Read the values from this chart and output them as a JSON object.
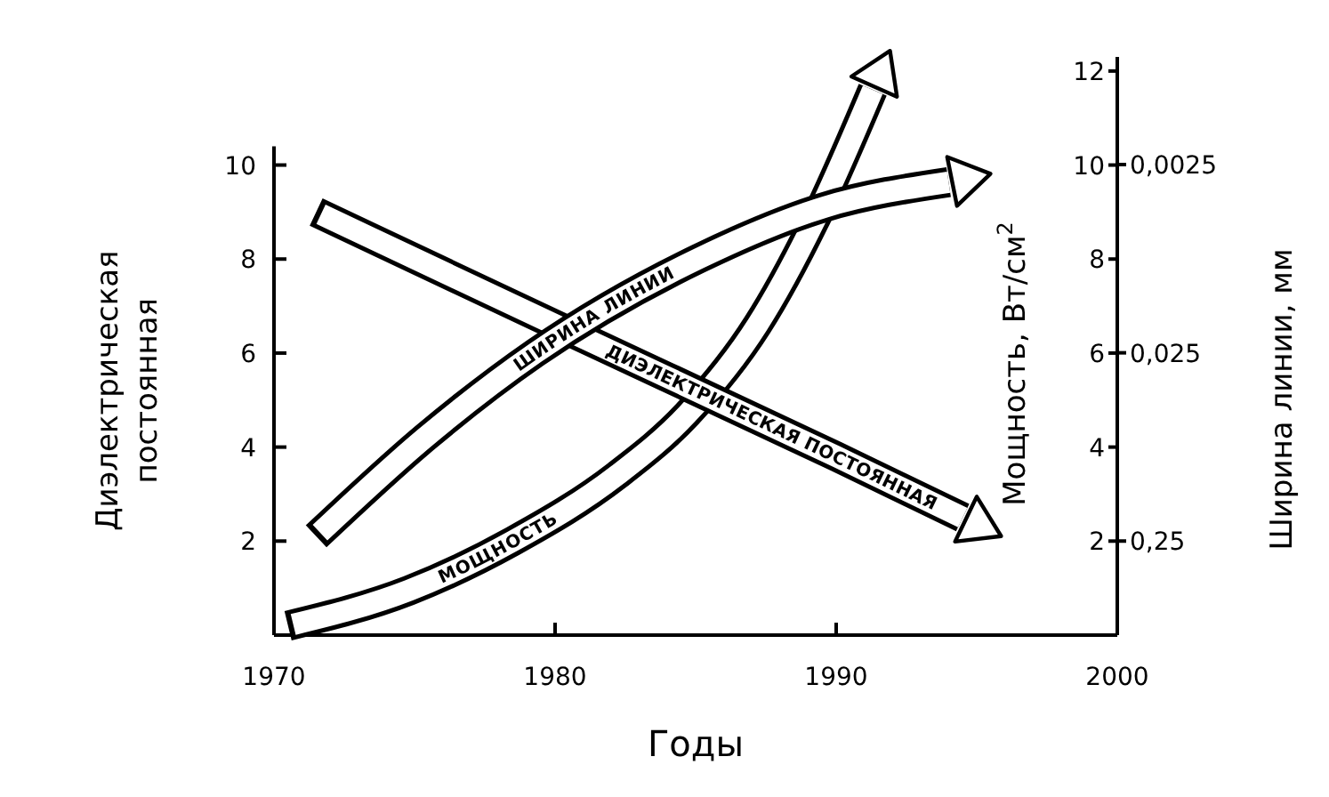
{
  "chart_data": {
    "type": "line",
    "xlabel": "Годы",
    "ylabel": "Диэлектрическая постоянная",
    "y2label": "Мощность, Вт/см$^{2}$",
    "y3label": "Ширина линии, мм",
    "xlim": [
      1970,
      2000
    ],
    "xticks": [
      1970,
      1980,
      1990,
      2000
    ],
    "ylim": [
      0,
      10.4
    ],
    "yticks": [
      2,
      4,
      6,
      8,
      10
    ],
    "y2lim": [
      0,
      12.3
    ],
    "y2ticks": [
      2,
      4,
      6,
      8,
      10,
      12
    ],
    "y3lim": [
      0.79,
      0.00067
    ],
    "y3ticks": [
      {
        "value": 0.25,
        "label": "0,25"
      },
      {
        "value": 0.025,
        "label": "0,025"
      },
      {
        "value": 0.0025,
        "label": "0,0025"
      }
    ],
    "log": "y3",
    "series": [
      {
        "name": "МОЩНОСТЬ",
        "color": "#000000",
        "axis": "y2",
        "x": [
          1970.5,
          1974.8,
          1978.5,
          1982.2,
          1984.7,
          1987.2,
          1989.3,
          1991.3
        ],
        "values": [
          0.2,
          0.95,
          2.0,
          3.4,
          4.7,
          6.6,
          8.9,
          11.6
        ]
      },
      {
        "name": "ДИЭЛЕКТРИЧЕСКАЯ ПОСТОЯННАЯ",
        "color": "#000000",
        "axis": "y",
        "x": [
          1971.5,
          1980,
          1990,
          1994.5
        ],
        "values": [
          9.0,
          6.6,
          3.8,
          2.5
        ]
      },
      {
        "name": "ШИРИНА ЛИНИИ",
        "color": "#000000",
        "axis": "y3",
        "x": [
          1971.5,
          1975.4,
          1979.3,
          1985.1,
          1989.6,
          1994.0
        ],
        "values": [
          0.236,
          0.07,
          0.025,
          0.0079,
          0.0042,
          0.0031
        ]
      }
    ]
  }
}
